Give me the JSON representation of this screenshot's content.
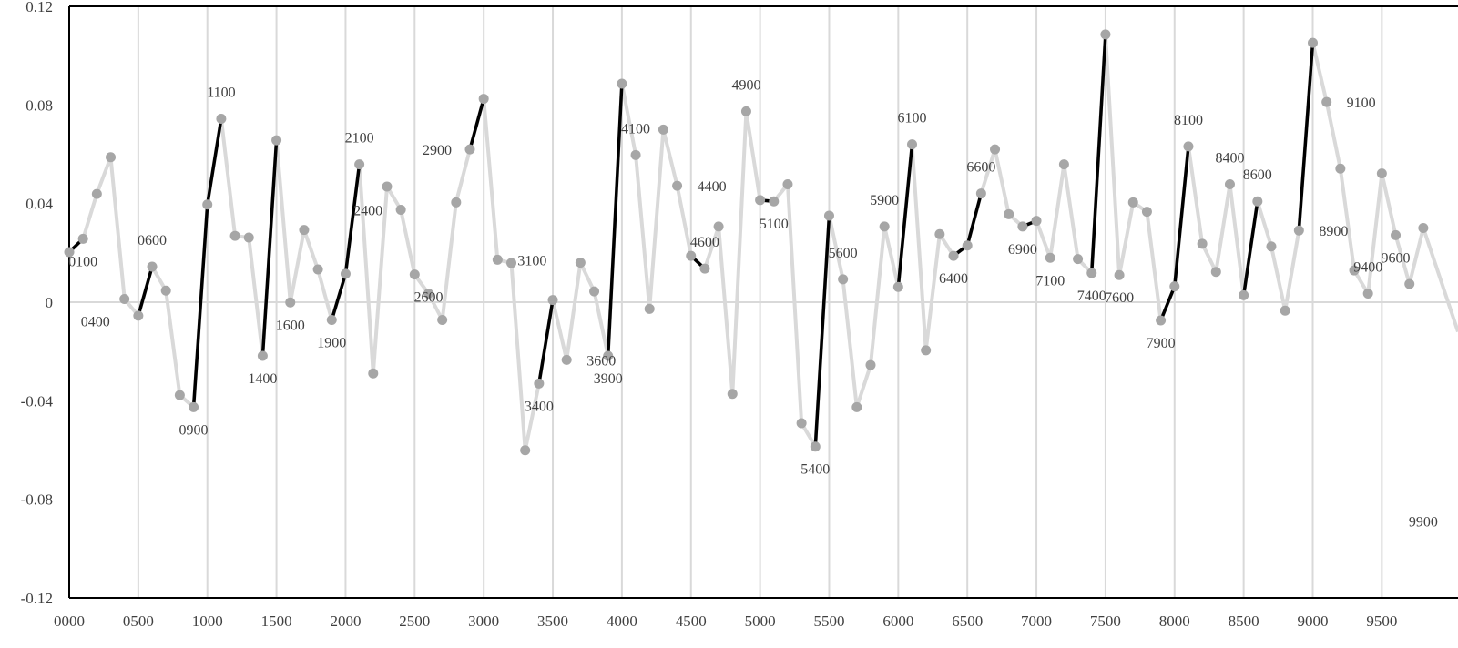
{
  "chart_data": {
    "type": "line",
    "title": "",
    "xlabel": "",
    "ylabel": "",
    "xlim": [
      0,
      9800
    ],
    "ylim": [
      -0.12,
      0.12
    ],
    "grid": "vertical",
    "x_tick_labels": [
      "0000",
      "0500",
      "1000",
      "1500",
      "2000",
      "2500",
      "3000",
      "3500",
      "4000",
      "4500",
      "5000",
      "5500",
      "6000",
      "6500",
      "7000",
      "7500",
      "8000",
      "8500",
      "9000",
      "9500"
    ],
    "y_tick_labels": [
      "0.12",
      "0.08",
      "0.04",
      "0",
      "-0.04",
      "-0.08",
      "-0.12"
    ],
    "colors": {
      "line": "#d9d9d9",
      "highlight": "#000000",
      "marker": "#a6a6a6",
      "axis": "#000000",
      "grid": "#d9d9d9"
    },
    "series": [
      {
        "x": [
          0,
          100,
          200,
          300,
          400,
          500,
          600,
          700,
          800,
          900,
          1000,
          1100,
          1200,
          1300,
          1400,
          1500,
          1600,
          1700,
          1800,
          1900,
          2000,
          2100,
          2200,
          2300,
          2400,
          2500,
          2600,
          2700,
          2800,
          2900,
          3000,
          3100,
          3200,
          3300,
          3400,
          3500,
          3600,
          3700,
          3800,
          3900,
          4000,
          4100,
          4200,
          4300,
          4400,
          4500,
          4600,
          4700,
          4800,
          4900,
          5000,
          5100,
          5200,
          5300,
          5400,
          5500,
          5600,
          5700,
          5800,
          5900,
          6000,
          6100,
          6200,
          6300,
          6400,
          6500,
          6600,
          6700,
          6800,
          6900,
          7000,
          7100,
          7200,
          7300,
          7400,
          7500,
          7600,
          7700,
          7800,
          7900,
          8000,
          8100,
          8200,
          8300,
          8400,
          8500,
          8600,
          8700,
          8800,
          8900,
          9000,
          9100,
          9200,
          9300,
          9400,
          9500,
          9600,
          9700,
          9800
        ],
        "y": [
          0.0203,
          0.0257,
          0.0439,
          0.0588,
          0.0013,
          -0.0055,
          0.0144,
          0.0047,
          -0.0377,
          -0.0426,
          0.0396,
          0.0744,
          0.0269,
          0.0262,
          -0.0218,
          0.0657,
          -0.0001,
          0.0293,
          0.0133,
          -0.0072,
          0.0115,
          0.0559,
          -0.0289,
          0.0469,
          0.0375,
          0.0112,
          0.0035,
          -0.0072,
          0.0405,
          0.062,
          0.0825,
          0.0172,
          0.0159,
          -0.0601,
          -0.033,
          0.0009,
          -0.0234,
          0.016,
          0.0044,
          -0.0218,
          0.0886,
          0.0597,
          -0.0027,
          0.07,
          0.0472,
          0.0188,
          0.0136,
          0.0307,
          -0.0372,
          0.0774,
          0.0414,
          0.0409,
          0.0478,
          -0.0491,
          -0.0586,
          0.0351,
          0.0093,
          -0.0426,
          -0.0255,
          0.0307,
          0.0062,
          0.064,
          -0.0195,
          0.0276,
          0.0188,
          0.023,
          0.0441,
          0.062,
          0.0357,
          0.0307,
          0.033,
          0.018,
          0.0559,
          0.0175,
          0.0118,
          0.1086,
          0.011,
          0.0405,
          0.0367,
          -0.0074,
          0.0064,
          0.0632,
          0.0237,
          0.0123,
          0.0478,
          0.0028,
          0.0409,
          0.0226,
          -0.0034,
          0.0291,
          0.1052,
          0.0812,
          0.0542,
          0.0129,
          0.0035,
          0.0522,
          0.0272,
          0.0074,
          0.0301
        ]
      }
    ],
    "highlighted_segments": [
      [
        0,
        100
      ],
      [
        500,
        600
      ],
      [
        900,
        1000
      ],
      [
        1000,
        1100
      ],
      [
        1400,
        1500
      ],
      [
        1900,
        2000
      ],
      [
        2000,
        2100
      ],
      [
        2900,
        3000
      ],
      [
        3400,
        3500
      ],
      [
        3900,
        4000
      ],
      [
        4500,
        4600
      ],
      [
        5000,
        5100
      ],
      [
        5400,
        5500
      ],
      [
        6000,
        6100
      ],
      [
        6400,
        6500
      ],
      [
        6500,
        6600
      ],
      [
        6900,
        7000
      ],
      [
        7400,
        7500
      ],
      [
        7900,
        8000
      ],
      [
        8000,
        8100
      ],
      [
        8500,
        8600
      ],
      [
        8900,
        9000
      ]
    ],
    "data_labels": [
      {
        "text": "0100",
        "x": 100,
        "y": 0.0257,
        "pos": "below"
      },
      {
        "text": "0400",
        "x": 400,
        "y": 0.0013,
        "pos": "below-left"
      },
      {
        "text": "0600",
        "x": 600,
        "y": 0.0144,
        "pos": "above"
      },
      {
        "text": "0900",
        "x": 900,
        "y": -0.0426,
        "pos": "below"
      },
      {
        "text": "1100",
        "x": 1100,
        "y": 0.0744,
        "pos": "above"
      },
      {
        "text": "1400",
        "x": 1400,
        "y": -0.0218,
        "pos": "below"
      },
      {
        "text": "1600",
        "x": 1600,
        "y": -0.0001,
        "pos": "below"
      },
      {
        "text": "1900",
        "x": 1900,
        "y": -0.0072,
        "pos": "below"
      },
      {
        "text": "2100",
        "x": 2100,
        "y": 0.0559,
        "pos": "above"
      },
      {
        "text": "2400",
        "x": 2400,
        "y": 0.0375,
        "pos": "left"
      },
      {
        "text": "2600",
        "x": 2600,
        "y": 0.0112,
        "pos": "below"
      },
      {
        "text": "2900",
        "x": 2900,
        "y": 0.062,
        "pos": "left"
      },
      {
        "text": "3100",
        "x": 3100,
        "y": 0.0172,
        "pos": "right"
      },
      {
        "text": "3400",
        "x": 3400,
        "y": -0.033,
        "pos": "below"
      },
      {
        "text": "3600",
        "x": 3600,
        "y": -0.0234,
        "pos": "right"
      },
      {
        "text": "3900",
        "x": 3900,
        "y": -0.0218,
        "pos": "below"
      },
      {
        "text": "4100",
        "x": 4100,
        "y": 0.0597,
        "pos": "above"
      },
      {
        "text": "4400",
        "x": 4400,
        "y": 0.0472,
        "pos": "right"
      },
      {
        "text": "4600",
        "x": 4600,
        "y": 0.0136,
        "pos": "above"
      },
      {
        "text": "4900",
        "x": 4900,
        "y": 0.0774,
        "pos": "above"
      },
      {
        "text": "5100",
        "x": 5100,
        "y": 0.0409,
        "pos": "below"
      },
      {
        "text": "5400",
        "x": 5400,
        "y": -0.0586,
        "pos": "below"
      },
      {
        "text": "5600",
        "x": 5600,
        "y": 0.0093,
        "pos": "above"
      },
      {
        "text": "5900",
        "x": 5900,
        "y": 0.0307,
        "pos": "above"
      },
      {
        "text": "6100",
        "x": 6100,
        "y": 0.064,
        "pos": "above"
      },
      {
        "text": "6400",
        "x": 6400,
        "y": 0.0188,
        "pos": "below"
      },
      {
        "text": "6600",
        "x": 6600,
        "y": 0.0441,
        "pos": "above"
      },
      {
        "text": "6900",
        "x": 6900,
        "y": 0.0307,
        "pos": "below"
      },
      {
        "text": "7100",
        "x": 7100,
        "y": 0.018,
        "pos": "below"
      },
      {
        "text": "7400",
        "x": 7400,
        "y": 0.0118,
        "pos": "below"
      },
      {
        "text": "7600",
        "x": 7600,
        "y": 0.011,
        "pos": "below"
      },
      {
        "text": "7900",
        "x": 7900,
        "y": -0.0074,
        "pos": "below"
      },
      {
        "text": "8100",
        "x": 8100,
        "y": 0.0632,
        "pos": "above"
      },
      {
        "text": "8400",
        "x": 8400,
        "y": 0.0478,
        "pos": "above"
      },
      {
        "text": "8600",
        "x": 8600,
        "y": 0.0409,
        "pos": "above"
      },
      {
        "text": "8900",
        "x": 8900,
        "y": 0.0291,
        "pos": "right"
      },
      {
        "text": "9100",
        "x": 9100,
        "y": 0.0812,
        "pos": "right"
      },
      {
        "text": "9400",
        "x": 9400,
        "y": 0.0035,
        "pos": "above"
      },
      {
        "text": "9600",
        "x": 9600,
        "y": 0.0272,
        "pos": "below"
      },
      {
        "text": "9900",
        "x": 9800,
        "y": -0.08,
        "pos": "below"
      }
    ]
  }
}
